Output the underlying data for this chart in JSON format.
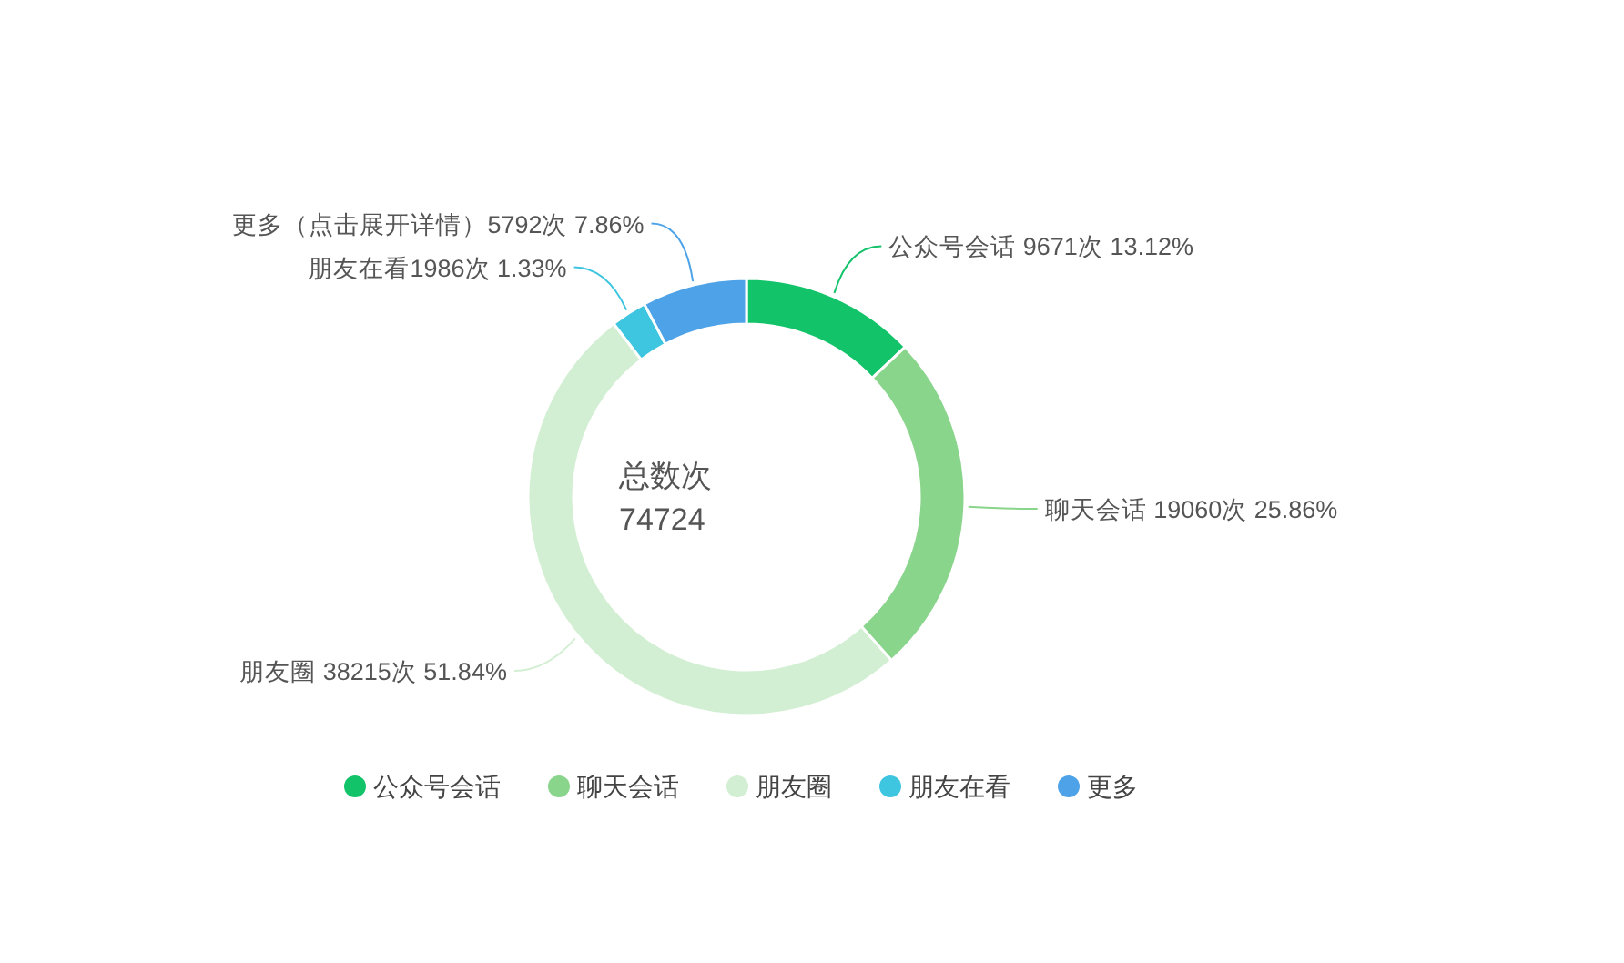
{
  "chart_data": {
    "type": "donut",
    "categories": [
      "公众号会话",
      "聊天会话",
      "朋友圈",
      "朋友在看",
      "更多"
    ],
    "values": [
      9671,
      19060,
      38215,
      1986,
      5792
    ],
    "colors": [
      "#13c36a",
      "#8ad58c",
      "#d3efd3",
      "#3ec5e0",
      "#4ea3e8"
    ],
    "value_labels": [
      "公众号会话 9671次 13.12%",
      "聊天会话 19060次 25.86%",
      "朋友圈 38215次 51.84%",
      "朋友在看1986次 1.33%",
      "更多（点击展开详情）5792次 7.86%"
    ],
    "annotations": [
      "总数次",
      "74724"
    ],
    "legend": "bottom"
  }
}
